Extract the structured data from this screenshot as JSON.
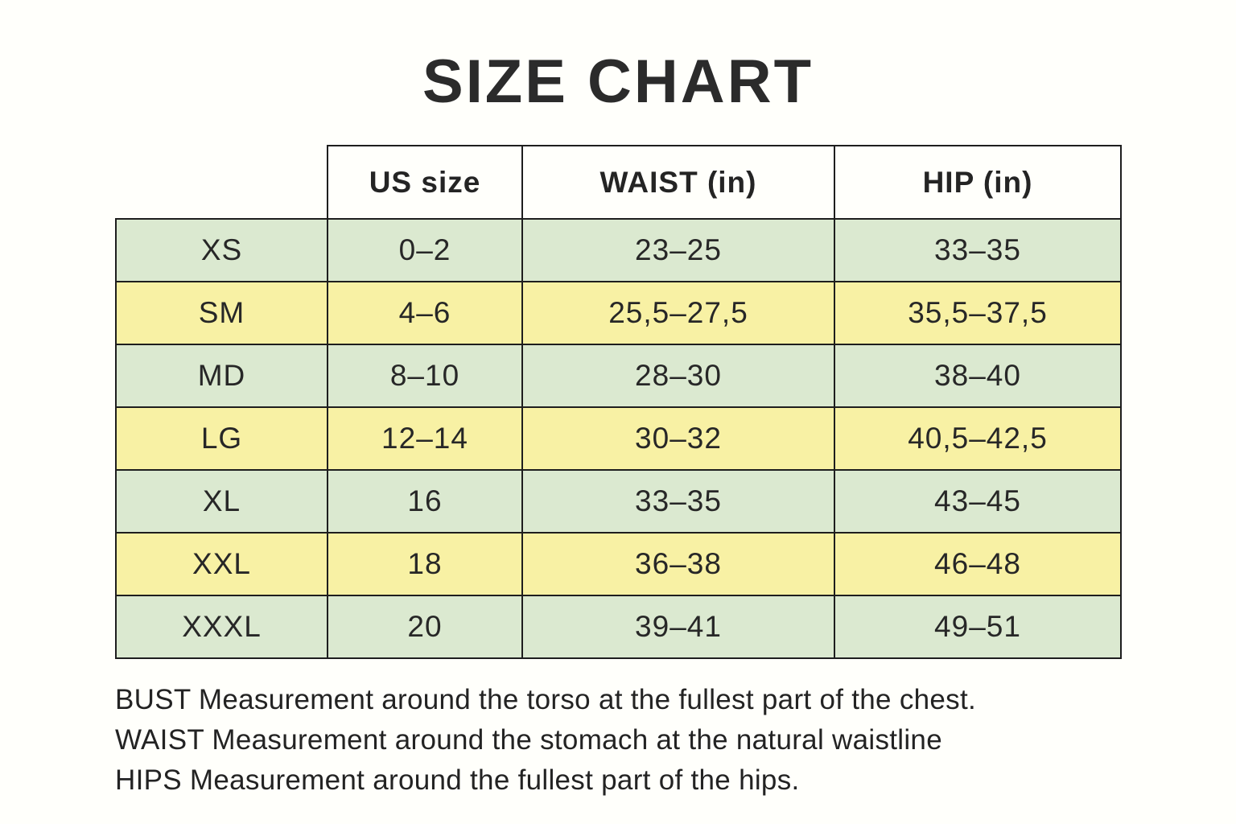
{
  "page": {
    "title": "SIZE CHART"
  },
  "chart_data": {
    "type": "table",
    "title": "SIZE CHART",
    "columns": [
      "",
      "US size",
      "WAIST (in)",
      "HIP (in)"
    ],
    "rows": [
      [
        "XS",
        "0–2",
        "23–25",
        "33–35"
      ],
      [
        "SM",
        "4–6",
        "25,5–27,5",
        "35,5–37,5"
      ],
      [
        "MD",
        "8–10",
        "28–30",
        "38–40"
      ],
      [
        "LG",
        "12–14",
        "30–32",
        "40,5–42,5"
      ],
      [
        "XL",
        "16",
        "33–35",
        "43–45"
      ],
      [
        "XXL",
        "18",
        "36–38",
        "46–48"
      ],
      [
        "XXXL",
        "20",
        "39–41",
        "49–51"
      ]
    ],
    "row_stripe_pattern": [
      "green",
      "yellow",
      "green",
      "yellow",
      "green",
      "yellow",
      "green"
    ],
    "notes": [
      "BUST Measurement around the torso at the fullest part of the chest.",
      "WAIST Measurement around the stomach at the natural waistline",
      "HIPS Measurement around the fullest part of the hips."
    ],
    "colors": {
      "row_green": "#dbe9d0",
      "row_yellow": "#f8f1a4",
      "border": "#1e1e1e",
      "text": "#272727",
      "background": "#fffffb"
    }
  }
}
